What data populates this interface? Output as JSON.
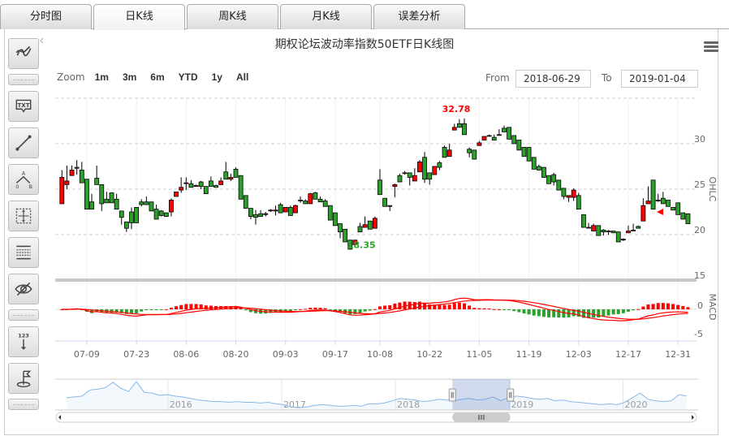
{
  "tabs": [
    {
      "label": "分时图",
      "active": false
    },
    {
      "label": "日K线",
      "active": true
    },
    {
      "label": "周K线",
      "active": false
    },
    {
      "label": "月K线",
      "active": false
    },
    {
      "label": "误差分析",
      "active": false
    }
  ],
  "toolbar": [
    "trend-lines-icon",
    "separator",
    "text-annotation-icon",
    "line-segment-icon",
    "elliott-wave-icon",
    "measure-icon",
    "fibonacci-icon",
    "hide-icon",
    "separator",
    "vertical-counter-icon",
    "flag-icon",
    "separator"
  ],
  "title": "期权论坛波动率指数50ETF日K线图",
  "range_selector": {
    "label": "Zoom",
    "buttons": [
      "1m",
      "3m",
      "6m",
      "YTD",
      "1y",
      "All"
    ]
  },
  "date_range": {
    "from_label": "From",
    "from": "2018-06-29",
    "to_label": "To",
    "to": "2019-01-04"
  },
  "colors": {
    "up": "#ff0000",
    "down": "#2ca02c",
    "macd": "#ff0000",
    "grid": "#cccccc",
    "navigator": "#88b8e8"
  },
  "chart_data": {
    "type": "candlestick",
    "ohlc_axis_label": "OHLC",
    "macd_axis_label": "MACD",
    "y_ticks": [
      15,
      20,
      25,
      30
    ],
    "y_range": [
      15,
      35
    ],
    "macd_ticks": [
      0,
      -5
    ],
    "x_ticks": [
      {
        "label": "07-09",
        "index": 5
      },
      {
        "label": "07-23",
        "index": 15
      },
      {
        "label": "08-06",
        "index": 25
      },
      {
        "label": "08-20",
        "index": 35
      },
      {
        "label": "09-03",
        "index": 45
      },
      {
        "label": "09-17",
        "index": 55
      },
      {
        "label": "10-08",
        "index": 64
      },
      {
        "label": "10-22",
        "index": 74
      },
      {
        "label": "11-05",
        "index": 84
      },
      {
        "label": "11-19",
        "index": 94
      },
      {
        "label": "12-03",
        "index": 104
      },
      {
        "label": "12-17",
        "index": 114
      },
      {
        "label": "12-31",
        "index": 124
      }
    ],
    "max_label": "32.78",
    "min_label": "18.35",
    "ohlc": [
      [
        23.4,
        27.1,
        23.4,
        26.3
      ],
      [
        25.5,
        27.6,
        25.0,
        25.9
      ],
      [
        26.5,
        27.6,
        26.5,
        27.1
      ],
      [
        27.4,
        28.2,
        26.6,
        27.3
      ],
      [
        27.1,
        28.0,
        25.7,
        25.7
      ],
      [
        26.1,
        26.1,
        22.8,
        22.8
      ],
      [
        23.6,
        24.5,
        22.8,
        22.8
      ],
      [
        26.2,
        27.6,
        25.5,
        25.5
      ],
      [
        25.5,
        25.5,
        22.6,
        23.4
      ],
      [
        23.9,
        24.7,
        23.5,
        23.5
      ],
      [
        24.6,
        24.6,
        23.5,
        23.5
      ],
      [
        23.9,
        24.5,
        22.8,
        22.8
      ],
      [
        22.6,
        22.6,
        21.1,
        21.9
      ],
      [
        21.4,
        21.4,
        20.3,
        20.7
      ],
      [
        22.5,
        23.0,
        20.6,
        21.3
      ],
      [
        23.0,
        23.0,
        21.3,
        21.3
      ],
      [
        23.6,
        23.9,
        23.1,
        23.3
      ],
      [
        23.6,
        24.2,
        23.3,
        23.3
      ],
      [
        23.6,
        23.6,
        22.6,
        22.6
      ],
      [
        22.8,
        23.3,
        21.7,
        21.7
      ],
      [
        22.6,
        22.7,
        22.0,
        22.1
      ],
      [
        22.4,
        22.4,
        22.0,
        22.0
      ],
      [
        22.5,
        24.0,
        22.0,
        23.8
      ],
      [
        24.2,
        24.7,
        24.2,
        24.7
      ],
      [
        24.9,
        26.3,
        24.6,
        25.2
      ],
      [
        25.7,
        26.3,
        24.9,
        25.7
      ],
      [
        25.6,
        26.0,
        25.2,
        25.2
      ],
      [
        25.4,
        25.5,
        25.4,
        25.4
      ],
      [
        25.8,
        25.9,
        25.0,
        25.3
      ],
      [
        25.3,
        25.3,
        24.5,
        24.5
      ],
      [
        25.9,
        26.4,
        25.3,
        25.3
      ],
      [
        25.4,
        25.5,
        25.2,
        25.2
      ],
      [
        25.5,
        26.3,
        25.5,
        25.9
      ],
      [
        26.9,
        28.0,
        26.1,
        26.1
      ],
      [
        26.1,
        26.7,
        25.9,
        26.3
      ],
      [
        27.2,
        27.4,
        26.3,
        26.3
      ],
      [
        26.5,
        26.5,
        23.9,
        23.9
      ],
      [
        24.3,
        24.3,
        22.9,
        22.9
      ],
      [
        22.9,
        22.9,
        21.7,
        22.0
      ],
      [
        22.2,
        22.7,
        21.1,
        21.9
      ],
      [
        22.3,
        22.7,
        22.0,
        22.0
      ],
      [
        22.3,
        22.5,
        22.0,
        22.3
      ],
      [
        22.7,
        22.8,
        22.5,
        22.7
      ],
      [
        22.6,
        23.2,
        22.1,
        22.7
      ],
      [
        23.3,
        23.5,
        22.4,
        22.4
      ],
      [
        22.5,
        23.0,
        22.5,
        23.0
      ],
      [
        23.0,
        23.2,
        22.1,
        22.1
      ],
      [
        22.4,
        23.3,
        22.4,
        23.2
      ],
      [
        23.8,
        24.2,
        23.5,
        23.8
      ],
      [
        23.7,
        23.9,
        23.4,
        23.4
      ],
      [
        23.4,
        24.6,
        23.4,
        24.5
      ],
      [
        24.6,
        24.7,
        23.9,
        23.9
      ],
      [
        23.9,
        24.2,
        23.6,
        23.6
      ],
      [
        23.7,
        23.9,
        23.1,
        23.1
      ],
      [
        23.2,
        23.2,
        21.6,
        21.6
      ],
      [
        22.4,
        22.4,
        21.0,
        21.0
      ],
      [
        21.2,
        21.2,
        19.6,
        20.3
      ],
      [
        20.6,
        20.6,
        19.2,
        19.2
      ],
      [
        19.4,
        19.4,
        18.35,
        18.4
      ],
      [
        18.9,
        19.4,
        18.7,
        19.4
      ],
      [
        20.9,
        21.3,
        20.3,
        20.3
      ],
      [
        20.8,
        22.0,
        20.8,
        21.1
      ],
      [
        21.5,
        21.5,
        20.6,
        20.6
      ],
      [
        20.7,
        22.0,
        20.7,
        21.8
      ],
      [
        26.0,
        27.2,
        24.4,
        24.4
      ],
      [
        24.0,
        24.0,
        23.1,
        23.1
      ],
      [
        23.2,
        23.2,
        22.6,
        23.1
      ],
      [
        25.3,
        25.6,
        24.1,
        25.5
      ],
      [
        26.5,
        26.7,
        25.8,
        25.8
      ],
      [
        26.8,
        27.0,
        26.6,
        26.8
      ],
      [
        26.8,
        26.8,
        25.4,
        26.3
      ],
      [
        25.9,
        27.3,
        25.9,
        26.5
      ],
      [
        26.9,
        28.2,
        26.9,
        28.0
      ],
      [
        28.5,
        29.1,
        25.7,
        26.1
      ],
      [
        26.8,
        26.8,
        25.5,
        26.1
      ],
      [
        26.6,
        27.5,
        26.6,
        27.5
      ],
      [
        27.9,
        28.1,
        27.1,
        27.4
      ],
      [
        29.6,
        29.8,
        28.5,
        28.5
      ],
      [
        28.6,
        30.0,
        28.6,
        29.3
      ],
      [
        31.5,
        32.2,
        31.5,
        31.8
      ],
      [
        32.2,
        32.7,
        31.8,
        31.8
      ],
      [
        32.2,
        32.78,
        31.0,
        31.0
      ],
      [
        29.4,
        29.6,
        28.5,
        29.0
      ],
      [
        29.3,
        29.3,
        28.3,
        28.3
      ],
      [
        29.8,
        30.3,
        29.8,
        30.1
      ],
      [
        30.4,
        30.8,
        30.4,
        30.8
      ],
      [
        30.9,
        31.0,
        30.8,
        30.9
      ],
      [
        30.7,
        31.0,
        30.4,
        30.4
      ],
      [
        31.0,
        31.6,
        31.0,
        31.0
      ],
      [
        31.7,
        32.0,
        31.3,
        31.3
      ],
      [
        31.8,
        31.8,
        30.5,
        30.5
      ],
      [
        30.9,
        30.9,
        30.0,
        30.0
      ],
      [
        30.4,
        30.4,
        29.3,
        29.3
      ],
      [
        29.6,
        29.6,
        28.6,
        28.6
      ],
      [
        29.6,
        29.6,
        28.1,
        28.1
      ],
      [
        28.5,
        28.5,
        27.2,
        27.2
      ],
      [
        27.5,
        27.7,
        27.1,
        27.1
      ],
      [
        27.4,
        27.4,
        26.3,
        26.3
      ],
      [
        26.5,
        26.5,
        25.6,
        25.6
      ],
      [
        26.6,
        26.8,
        25.4,
        25.8
      ],
      [
        26.0,
        26.0,
        24.9,
        24.9
      ],
      [
        25.1,
        25.1,
        23.9,
        24.2
      ],
      [
        24.1,
        24.3,
        23.6,
        24.3
      ],
      [
        24.1,
        25.1,
        23.7,
        24.9
      ],
      [
        24.3,
        24.6,
        22.8,
        22.8
      ],
      [
        22.2,
        22.2,
        20.8,
        20.8
      ],
      [
        20.8,
        21.3,
        20.8,
        20.8
      ],
      [
        20.4,
        21.2,
        20.4,
        21.0
      ],
      [
        21.0,
        21.0,
        19.9,
        19.9
      ],
      [
        20.5,
        20.6,
        19.9,
        20.3
      ],
      [
        20.4,
        20.5,
        20.0,
        20.4
      ],
      [
        20.4,
        20.4,
        20.2,
        20.2
      ],
      [
        20.3,
        20.3,
        19.2,
        19.2
      ],
      [
        19.5,
        19.6,
        19.3,
        19.5
      ],
      [
        20.2,
        21.0,
        20.2,
        20.4
      ],
      [
        20.5,
        21.2,
        20.5,
        20.5
      ],
      [
        20.9,
        21.0,
        20.7,
        20.7
      ],
      [
        21.5,
        24.0,
        21.5,
        23.2
      ],
      [
        23.4,
        25.3,
        23.4,
        23.7
      ],
      [
        26.0,
        26.0,
        22.8,
        22.8
      ],
      [
        23.8,
        24.5,
        23.6,
        23.8
      ],
      [
        24.0,
        24.7,
        23.4,
        23.4
      ],
      [
        23.8,
        23.8,
        23.1,
        23.1
      ],
      [
        23.0,
        23.0,
        22.7,
        22.7
      ],
      [
        23.5,
        23.5,
        22.2,
        22.2
      ],
      [
        22.4,
        22.4,
        21.7,
        21.7
      ],
      [
        22.3,
        22.3,
        21.2,
        21.2
      ]
    ],
    "navigator": {
      "range": [
        2015.11,
        2020.56
      ],
      "selected": [
        2018.5,
        2019.01
      ],
      "year_labels": [
        "2016",
        "2017",
        "2018",
        "2019",
        "2020"
      ],
      "values": [
        26,
        27,
        28,
        36,
        37,
        39,
        46,
        38,
        34,
        47,
        33,
        32,
        29,
        30,
        28,
        27,
        25,
        23,
        22,
        21,
        21,
        20,
        21,
        20,
        20,
        19,
        20,
        18,
        17,
        14,
        13,
        14,
        16,
        17,
        16,
        15,
        15,
        16,
        15,
        18,
        18,
        19,
        22,
        25,
        24,
        23,
        21,
        22,
        24,
        23,
        22,
        24,
        25,
        23,
        24,
        27,
        22,
        26,
        28,
        27,
        25,
        24,
        25,
        22,
        23,
        21,
        20,
        19,
        18,
        17,
        18,
        17,
        20,
        26,
        32,
        24,
        22,
        21,
        22,
        30,
        28
      ]
    }
  }
}
